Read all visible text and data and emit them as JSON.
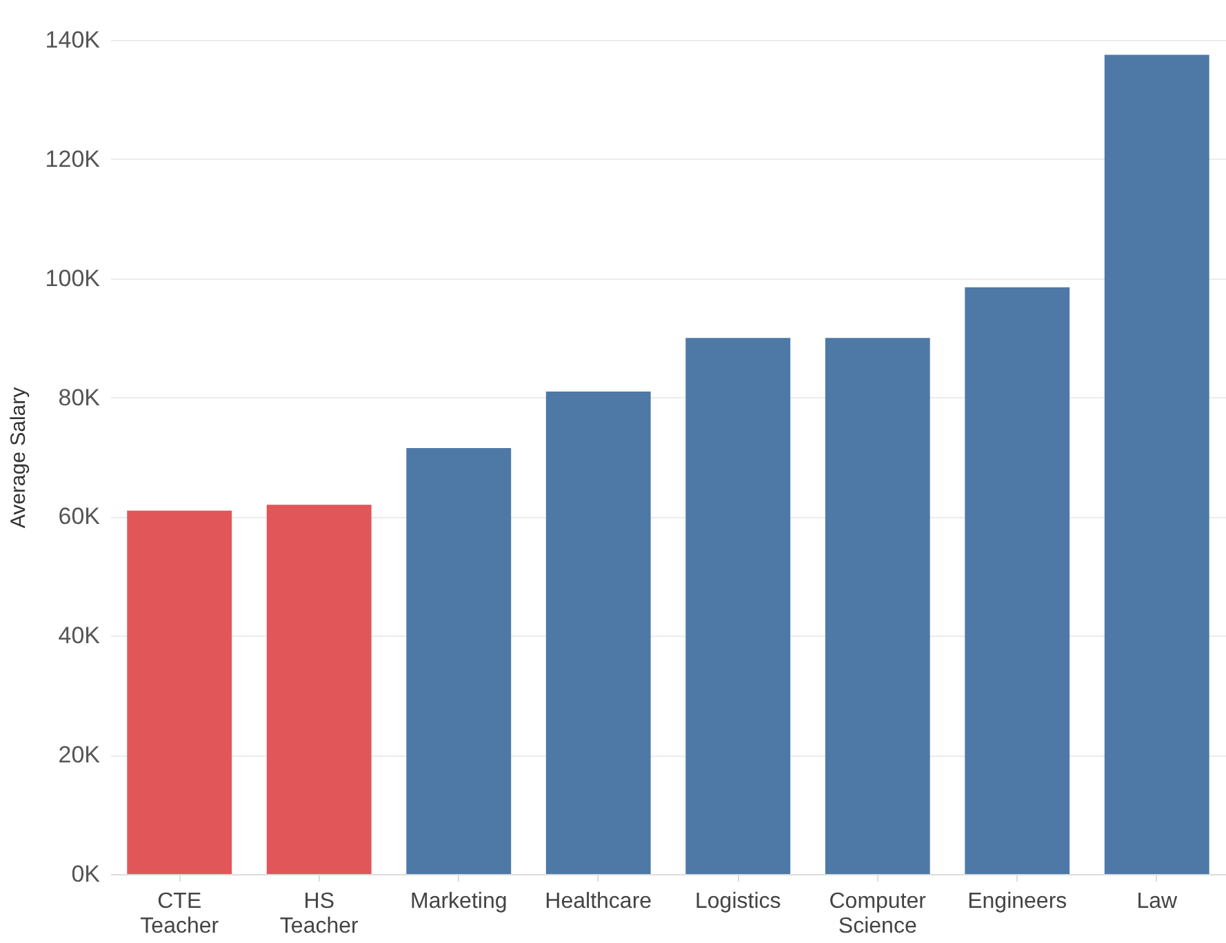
{
  "chart_data": {
    "type": "bar",
    "ylabel": "Average Salary",
    "categories": [
      "CTE Teacher",
      "HS Teacher",
      "Marketing",
      "Healthcare",
      "Logistics",
      "Computer Science",
      "Engineers",
      "Law"
    ],
    "values": [
      61000,
      62000,
      71500,
      81000,
      90000,
      90000,
      98500,
      137500
    ],
    "colors": [
      "#e15759",
      "#e15759",
      "#4e79a7",
      "#4e79a7",
      "#4e79a7",
      "#4e79a7",
      "#4e79a7",
      "#4e79a7"
    ],
    "ylim": [
      0,
      140000
    ],
    "yticks": [
      {
        "value": 0,
        "label": "0K"
      },
      {
        "value": 20000,
        "label": "20K"
      },
      {
        "value": 40000,
        "label": "40K"
      },
      {
        "value": 60000,
        "label": "60K"
      },
      {
        "value": 80000,
        "label": "80K"
      },
      {
        "value": 100000,
        "label": "100K"
      },
      {
        "value": 120000,
        "label": "120K"
      },
      {
        "value": 140000,
        "label": "140K"
      }
    ],
    "grid": "y"
  }
}
